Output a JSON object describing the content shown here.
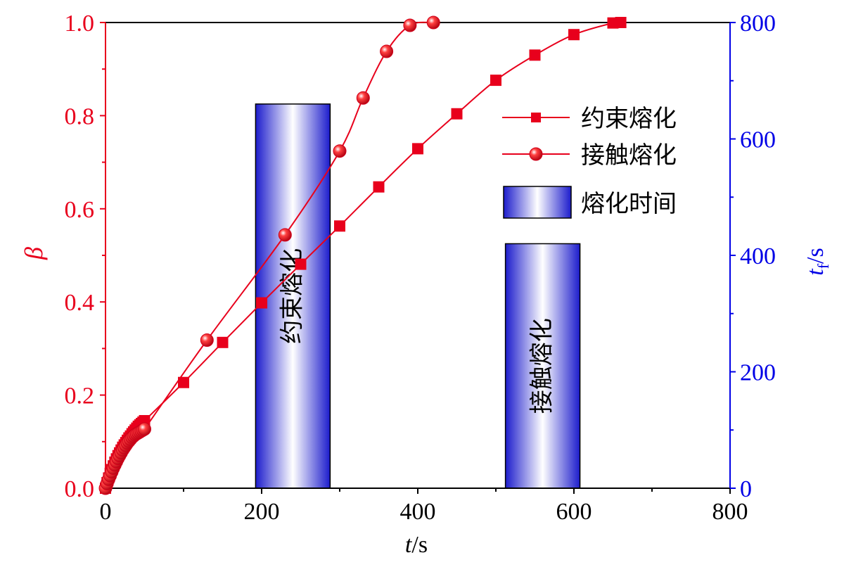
{
  "chart_data": {
    "type": "line",
    "xlabel": {
      "italic": "t",
      "rest": "/s"
    },
    "ylabel_left": "β",
    "ylabel_right": {
      "italic": "t",
      "sub": "f",
      "rest": "/s"
    },
    "xlim": [
      0,
      800
    ],
    "ylim_left": [
      0,
      1.0
    ],
    "ylim_right": [
      0,
      800
    ],
    "x_ticks": [
      "0",
      "200",
      "400",
      "600",
      "800"
    ],
    "y_left_ticks": [
      "0.0",
      "0.2",
      "0.4",
      "0.6",
      "0.8",
      "1.0"
    ],
    "y_right_ticks": [
      "0",
      "200",
      "400",
      "600",
      "800"
    ],
    "legend_position": "top-right",
    "series": [
      {
        "name": "约束熔化",
        "marker": "square",
        "color": "#e8001c",
        "x": [
          0,
          2,
          4,
          6,
          8,
          10,
          12,
          14,
          16,
          18,
          20,
          22,
          24,
          26,
          28,
          30,
          32,
          34,
          36,
          38,
          40,
          42,
          44,
          46,
          48,
          50,
          100,
          150,
          200,
          250,
          300,
          350,
          400,
          450,
          500,
          550,
          600,
          650,
          660
        ],
        "y": [
          0.0,
          0.012,
          0.022,
          0.032,
          0.04,
          0.048,
          0.056,
          0.063,
          0.07,
          0.076,
          0.082,
          0.088,
          0.093,
          0.098,
          0.103,
          0.108,
          0.112,
          0.117,
          0.121,
          0.125,
          0.129,
          0.133,
          0.136,
          0.139,
          0.142,
          0.145,
          0.227,
          0.313,
          0.398,
          0.481,
          0.563,
          0.647,
          0.729,
          0.804,
          0.876,
          0.93,
          0.974,
          0.999,
          1.0
        ]
      },
      {
        "name": "接触熔化",
        "marker": "sphere",
        "color": "#e8001c",
        "x": [
          0,
          2,
          4,
          6,
          8,
          10,
          12,
          14,
          16,
          18,
          20,
          22,
          24,
          26,
          28,
          30,
          32,
          34,
          36,
          38,
          40,
          42,
          44,
          46,
          48,
          50,
          130,
          230,
          300,
          330,
          360,
          390,
          420
        ],
        "y": [
          0.0,
          0.01,
          0.019,
          0.027,
          0.035,
          0.043,
          0.05,
          0.057,
          0.064,
          0.07,
          0.076,
          0.082,
          0.087,
          0.092,
          0.097,
          0.101,
          0.105,
          0.109,
          0.112,
          0.115,
          0.117,
          0.119,
          0.121,
          0.123,
          0.125,
          0.127,
          0.318,
          0.544,
          0.724,
          0.838,
          0.938,
          0.994,
          1.0
        ]
      }
    ],
    "bars": {
      "name": "熔化时间",
      "axis": "right",
      "items": [
        {
          "label": "约束熔化",
          "x": 240,
          "value": 660
        },
        {
          "label": "接触熔化",
          "x": 560,
          "value": 420
        }
      ]
    }
  }
}
